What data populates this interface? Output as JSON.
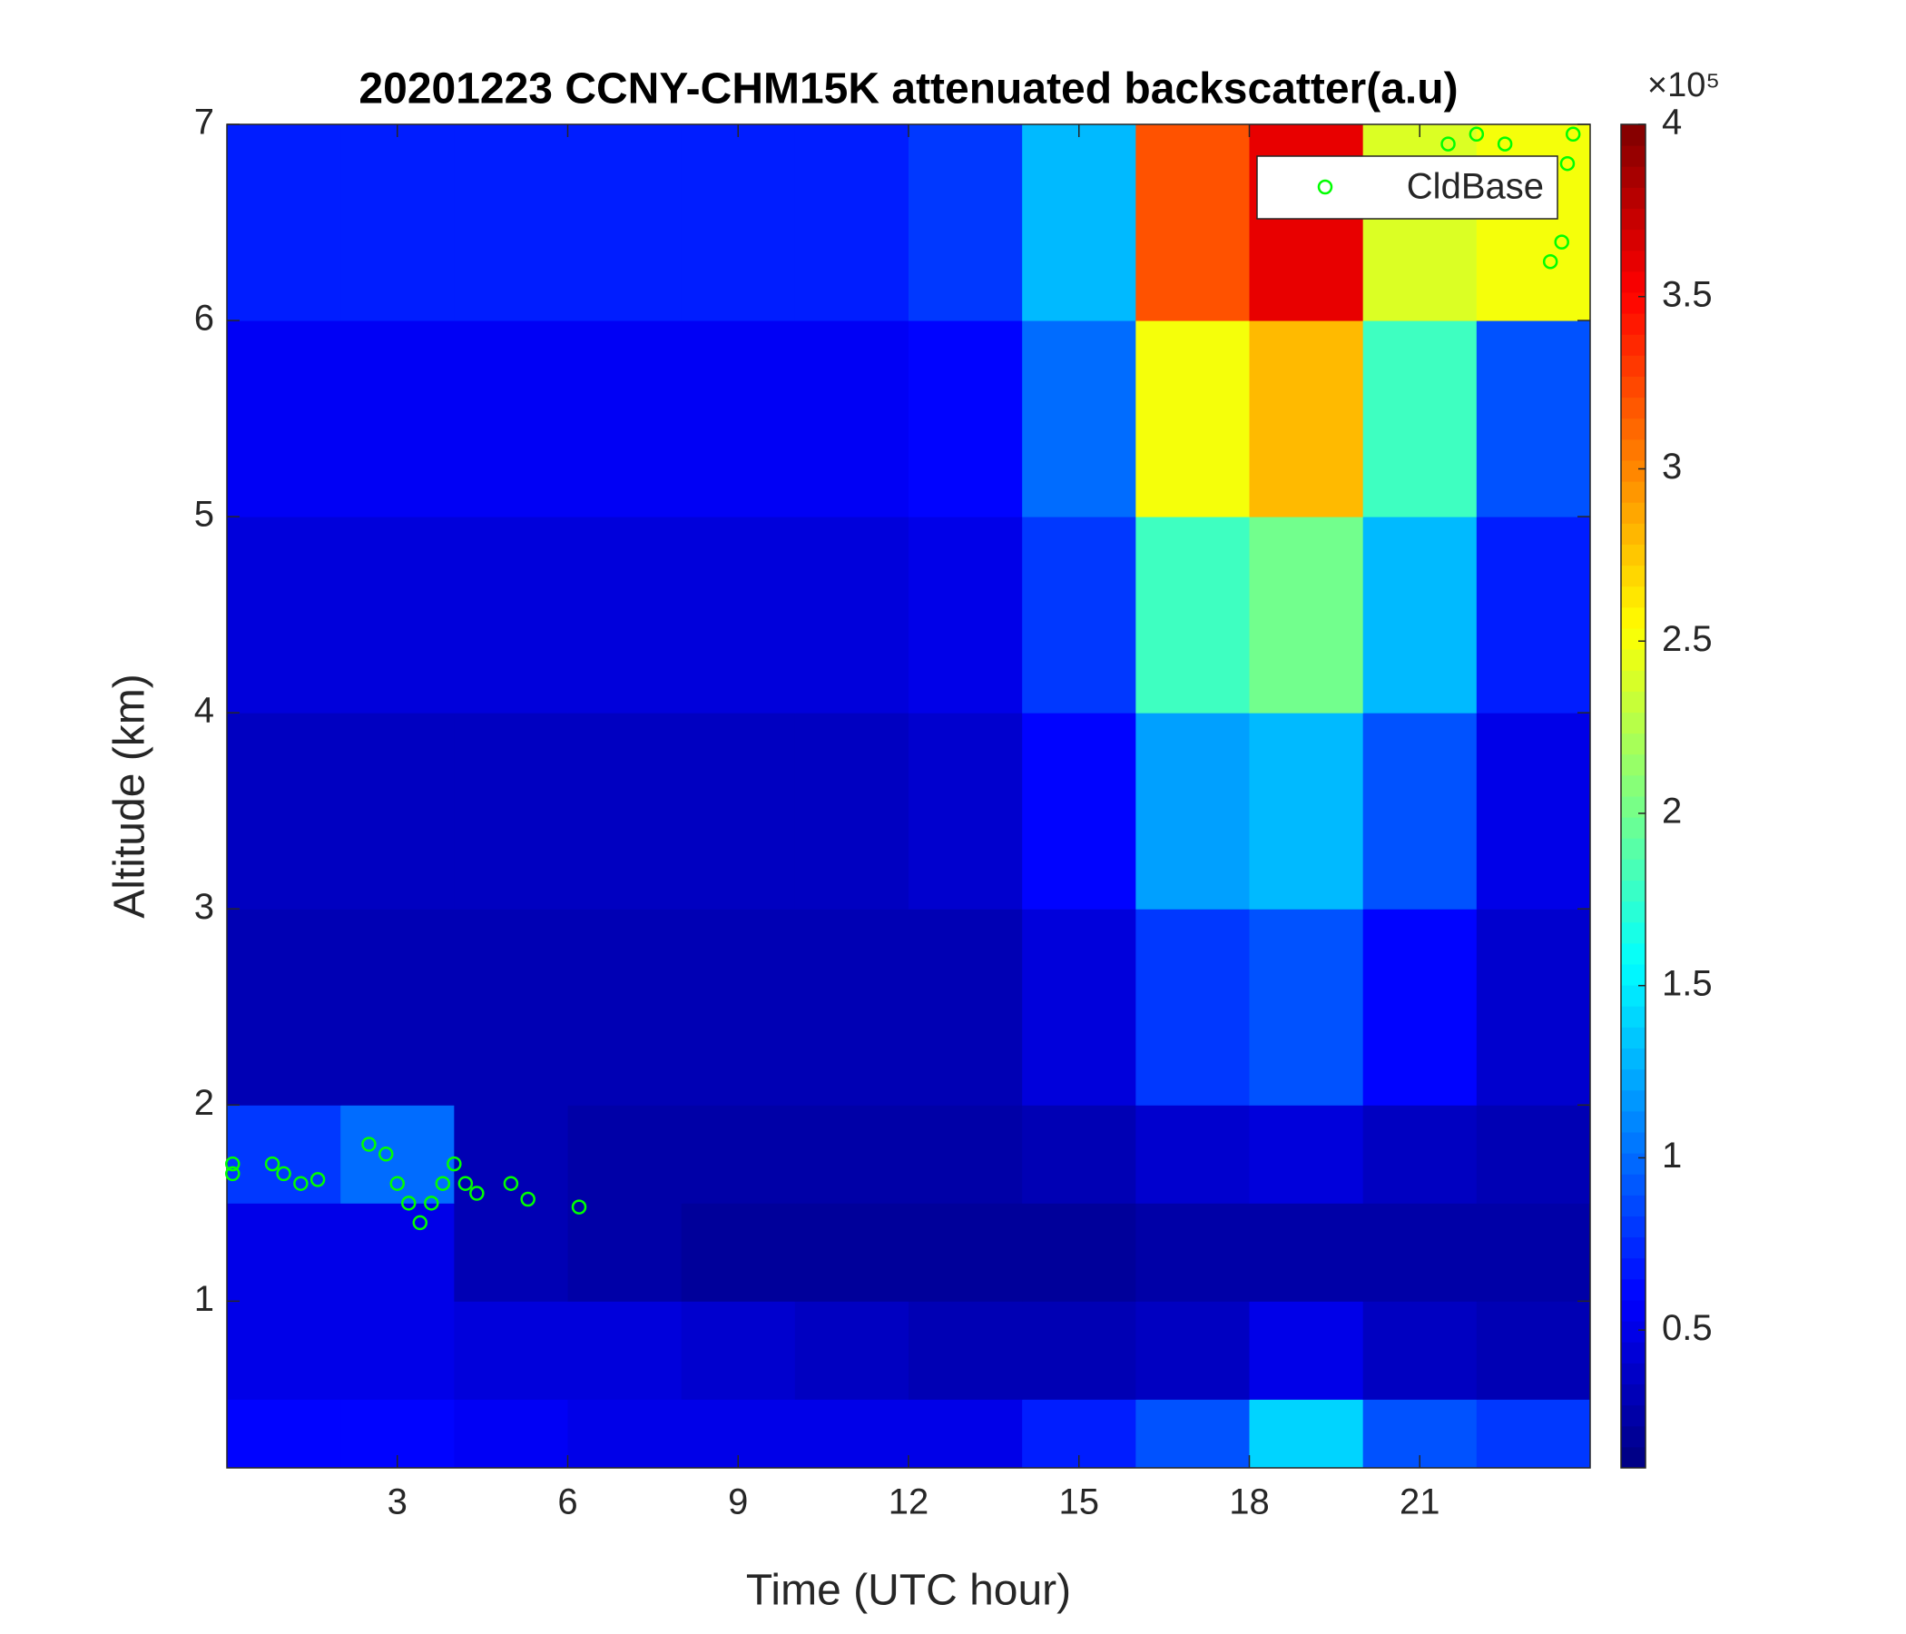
{
  "chart_data": {
    "type": "heatmap",
    "title": "20201223 CCNY-CHM15K attenuated backscatter(a.u)",
    "x_label": "Time (UTC hour)",
    "y_label": "Altitude (km)",
    "xlim": [
      0,
      24
    ],
    "ylim": [
      0.15,
      7
    ],
    "xticks": [
      3,
      6,
      9,
      12,
      15,
      18,
      21
    ],
    "yticks": [
      1,
      2,
      3,
      4,
      5,
      6,
      7
    ],
    "x_edges": [
      0,
      2,
      4,
      6,
      8,
      10,
      12,
      14,
      16,
      18,
      20,
      22,
      24
    ],
    "y_edges": [
      0.15,
      0.5,
      1,
      1.5,
      2,
      3,
      4,
      5,
      6,
      7
    ],
    "z": [
      [
        0.6,
        0.6,
        0.55,
        0.5,
        0.5,
        0.5,
        0.5,
        0.7,
        0.9,
        1.4,
        0.9,
        0.8
      ],
      [
        0.5,
        0.5,
        0.45,
        0.45,
        0.4,
        0.35,
        0.3,
        0.3,
        0.35,
        0.5,
        0.35,
        0.3
      ],
      [
        0.5,
        0.5,
        0.3,
        0.25,
        0.2,
        0.2,
        0.2,
        0.2,
        0.25,
        0.25,
        0.25,
        0.25
      ],
      [
        0.8,
        1.0,
        0.3,
        0.25,
        0.25,
        0.25,
        0.25,
        0.3,
        0.4,
        0.45,
        0.35,
        0.3
      ],
      [
        0.3,
        0.3,
        0.3,
        0.3,
        0.3,
        0.3,
        0.3,
        0.45,
        0.8,
        0.9,
        0.6,
        0.4
      ],
      [
        0.35,
        0.35,
        0.35,
        0.35,
        0.35,
        0.35,
        0.4,
        0.6,
        1.2,
        1.3,
        0.9,
        0.5
      ],
      [
        0.45,
        0.45,
        0.45,
        0.45,
        0.45,
        0.45,
        0.5,
        0.8,
        1.8,
        2.0,
        1.3,
        0.7
      ],
      [
        0.55,
        0.55,
        0.55,
        0.55,
        0.55,
        0.55,
        0.6,
        1.0,
        2.5,
        2.8,
        1.8,
        0.9
      ],
      [
        0.7,
        0.7,
        0.7,
        0.7,
        0.7,
        0.7,
        0.8,
        1.3,
        3.2,
        3.6,
        2.4,
        2.5
      ]
    ],
    "colormap": "jet",
    "clim": [
      0.1,
      4
    ],
    "colorbar_ticks": [
      0.5,
      1,
      1.5,
      2,
      2.5,
      3,
      3.5,
      4
    ],
    "colorbar_multiplier": "×10⁵",
    "series": [
      {
        "name": "CldBase",
        "color": "#00ff00",
        "x": [
          0.1,
          0.1,
          0.8,
          1.0,
          1.3,
          1.6,
          2.5,
          2.8,
          3.0,
          3.2,
          3.4,
          3.6,
          3.8,
          4.0,
          4.2,
          4.4,
          5.0,
          5.3,
          6.2,
          21.5,
          22.0,
          22.5,
          23.3,
          23.5,
          23.6,
          23.7
        ],
        "values": [
          1.65,
          1.7,
          1.7,
          1.65,
          1.6,
          1.62,
          1.8,
          1.75,
          1.6,
          1.5,
          1.4,
          1.5,
          1.6,
          1.7,
          1.6,
          1.55,
          1.6,
          1.52,
          1.48,
          6.9,
          6.95,
          6.9,
          6.3,
          6.4,
          6.8,
          6.95
        ]
      }
    ],
    "legend": "northeast"
  }
}
